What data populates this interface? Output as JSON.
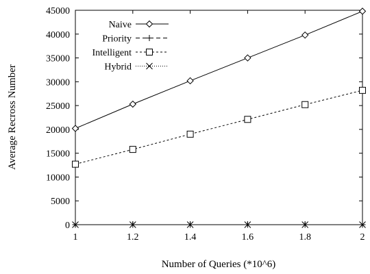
{
  "chart_data": {
    "type": "line",
    "xlabel": "Number of Queries (*10^6)",
    "ylabel": "Average Recross Number",
    "x": [
      1,
      1.2,
      1.4,
      1.6,
      1.8,
      2
    ],
    "xlim": [
      1,
      2
    ],
    "ylim": [
      0,
      45000
    ],
    "x_ticks": [
      "1",
      "1.2",
      "1.4",
      "1.6",
      "1.8",
      "2"
    ],
    "y_ticks": [
      "0",
      "5000",
      "10000",
      "15000",
      "20000",
      "25000",
      "30000",
      "35000",
      "40000",
      "45000"
    ],
    "grid": false,
    "legend_position": "top-left",
    "series": [
      {
        "name": "Naive",
        "values": [
          20200,
          25300,
          30200,
          35000,
          39800,
          44800
        ],
        "marker": "diamond",
        "line": "solid"
      },
      {
        "name": "Priority",
        "values": [
          0,
          0,
          0,
          0,
          0,
          0
        ],
        "marker": "plus",
        "line": "dashed"
      },
      {
        "name": "Intelligent",
        "values": [
          12700,
          15800,
          19000,
          22100,
          25200,
          28200
        ],
        "marker": "square",
        "line": "dotted"
      },
      {
        "name": "Hybrid",
        "values": [
          0,
          0,
          0,
          0,
          0,
          0
        ],
        "marker": "cross",
        "line": "dotted-fine"
      }
    ]
  }
}
